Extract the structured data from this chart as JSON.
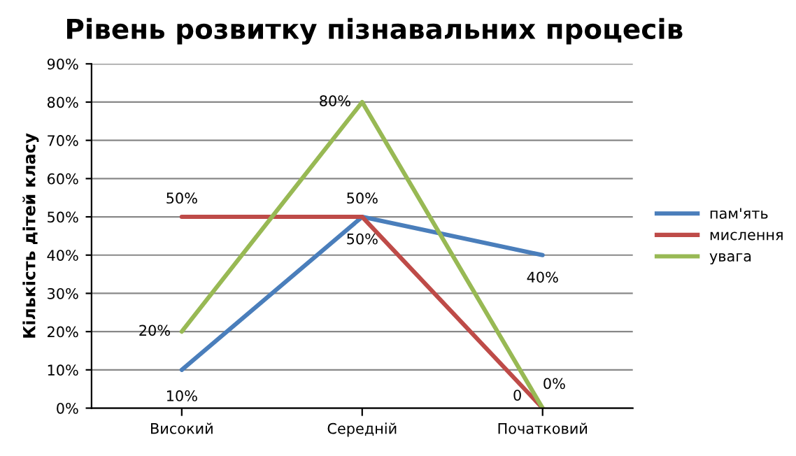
{
  "chart_data": {
    "type": "line",
    "title": "Рівень розвитку пізнавальних процесів",
    "ylabel": "Кількість дітей класу",
    "categories": [
      "Високий",
      "Середній",
      "Початковий"
    ],
    "series": [
      {
        "name": "пам'ять",
        "color": "#4a7ebb",
        "values": [
          10,
          50,
          40
        ],
        "value_labels": [
          "10%",
          "50%",
          "40%"
        ]
      },
      {
        "name": "мислення",
        "color": "#be4b48",
        "values": [
          50,
          50,
          0
        ],
        "value_labels": [
          "50%",
          "50%",
          "0"
        ]
      },
      {
        "name": "увага",
        "color": "#98b954",
        "values": [
          20,
          80,
          0
        ],
        "value_labels": [
          "20%",
          "80%",
          "0%"
        ]
      }
    ],
    "ylim": [
      0,
      90
    ],
    "yticks": [
      {
        "value": 0,
        "label": "0%"
      },
      {
        "value": 10,
        "label": "10%"
      },
      {
        "value": 20,
        "label": "20%"
      },
      {
        "value": 30,
        "label": "30%"
      },
      {
        "value": 40,
        "label": "40%"
      },
      {
        "value": 50,
        "label": "50%"
      },
      {
        "value": 60,
        "label": "60%"
      },
      {
        "value": 70,
        "label": "70%"
      },
      {
        "value": 80,
        "label": "80%"
      },
      {
        "value": 90,
        "label": "90%"
      }
    ],
    "grid": "y",
    "legend": "right",
    "marker": "none",
    "line_style": "solid"
  }
}
